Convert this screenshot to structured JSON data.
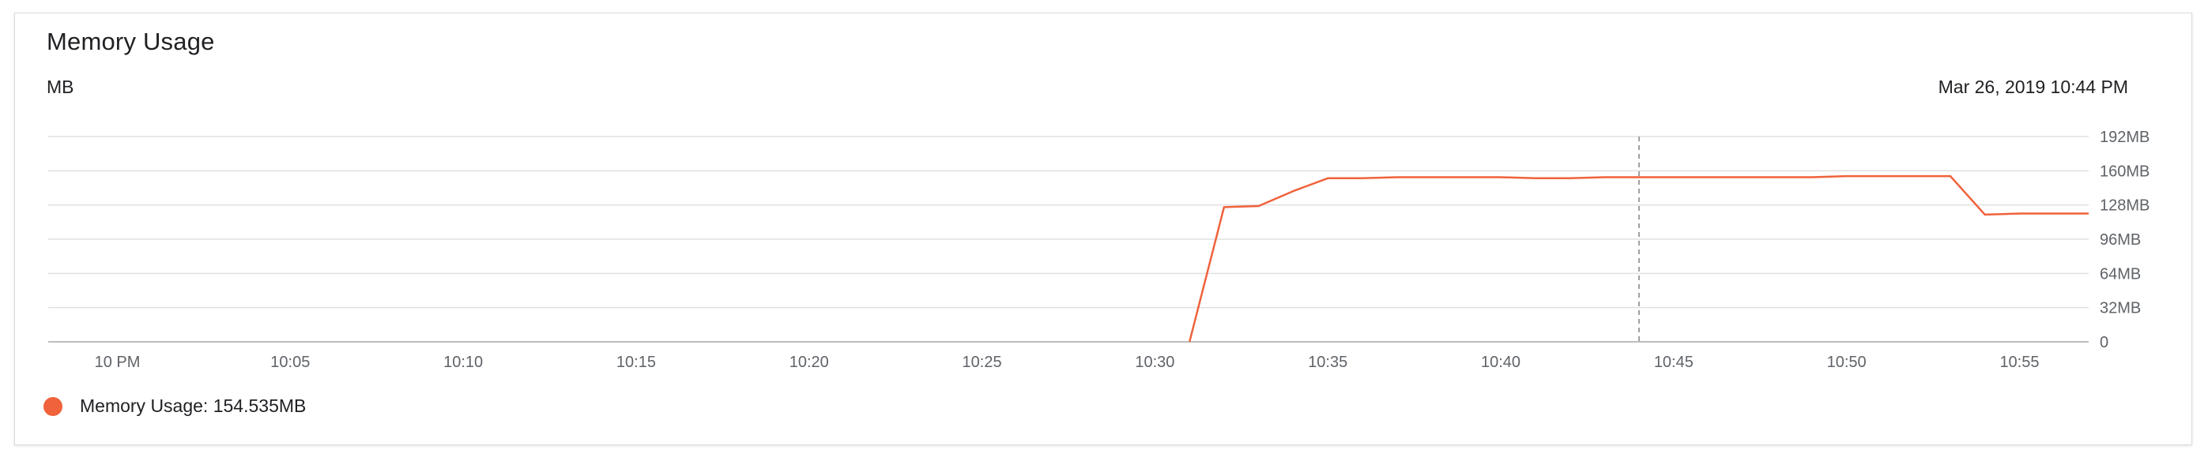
{
  "widget": {
    "title": "Memory Usage",
    "unit_label": "MB",
    "hover_time": "Mar 26, 2019 10:44 PM",
    "legend": {
      "label": "Memory Usage",
      "value": "154.535MB",
      "text": "Memory Usage: 154.535MB"
    }
  },
  "colors": {
    "series": "#f0623b",
    "grid": "#e0e0e0",
    "axis": "#bdbdbd",
    "cursor": "#9e9e9e"
  },
  "chart_data": {
    "type": "line",
    "title": "Memory Usage",
    "ylabel": "MB",
    "xlabel": "",
    "grid": true,
    "legend_position": "bottom-left",
    "y_axis_position": "right",
    "xlim": [
      "21:58",
      "22:57"
    ],
    "ylim": [
      0,
      192
    ],
    "x_ticks": [
      "10 PM",
      "10:05",
      "10:10",
      "10:15",
      "10:20",
      "10:25",
      "10:30",
      "10:35",
      "10:40",
      "10:45",
      "10:50",
      "10:55"
    ],
    "x_tick_times": [
      "22:00",
      "22:05",
      "22:10",
      "22:15",
      "22:20",
      "22:25",
      "22:30",
      "22:35",
      "22:40",
      "22:45",
      "22:50",
      "22:55"
    ],
    "y_ticks": [
      0,
      32,
      64,
      96,
      128,
      160,
      192
    ],
    "y_tick_labels": [
      "0",
      "32MB",
      "64MB",
      "96MB",
      "128MB",
      "160MB",
      "192MB"
    ],
    "hover_x": "22:44",
    "series": [
      {
        "name": "Memory Usage",
        "color": "#f0623b",
        "x": [
          "22:31",
          "22:32",
          "22:33",
          "22:34",
          "22:35",
          "22:36",
          "22:37",
          "22:38",
          "22:39",
          "22:40",
          "22:41",
          "22:42",
          "22:43",
          "22:44",
          "22:45",
          "22:46",
          "22:47",
          "22:48",
          "22:49",
          "22:50",
          "22:51",
          "22:52",
          "22:53",
          "22:54",
          "22:55",
          "22:56",
          "22:57"
        ],
        "y": [
          0,
          126,
          127,
          141,
          153,
          153,
          154,
          154,
          154,
          154,
          153,
          153,
          154,
          154,
          154,
          154,
          154,
          154,
          154,
          155,
          155,
          155,
          155,
          119,
          120,
          120,
          120
        ]
      }
    ]
  }
}
